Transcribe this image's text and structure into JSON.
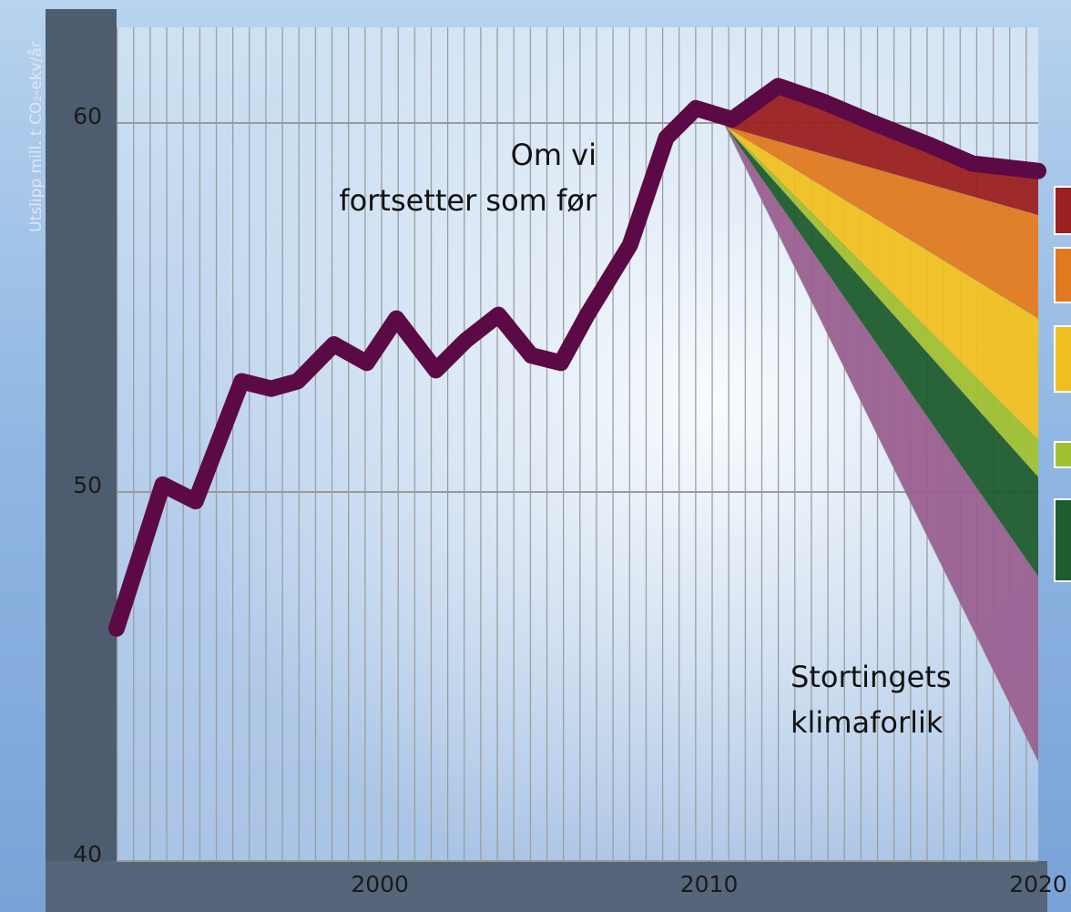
{
  "chart_data": {
    "type": "line",
    "y_label": "Utslipp mill. t CO₂-ekv/år",
    "xlim": [
      1992,
      2020
    ],
    "xticks": [
      2000,
      2010,
      2020
    ],
    "ylim": [
      40,
      60
    ],
    "yticks": [
      40,
      50,
      60
    ],
    "grid": true,
    "series": [
      {
        "color": "#5c0a45",
        "x": [
          1992,
          1993.4,
          1994.4,
          1995.8,
          1996.7,
          1997.5,
          1998.6,
          1999.6,
          2000.5,
          2001.7,
          2002.6,
          2003.6,
          2004.6,
          2005.5,
          2006.3,
          2007.6,
          2008.7,
          2009.6,
          2010.7,
          2012.1,
          2013.4,
          2015,
          2016.7,
          2018,
          2020
        ],
        "values": [
          46.3,
          50.2,
          49.75,
          53.0,
          52.8,
          53.0,
          54.0,
          53.5,
          54.7,
          53.3,
          54.1,
          54.8,
          53.7,
          53.5,
          54.8,
          56.7,
          59.6,
          60.4,
          60.1,
          61.0,
          60.6,
          60.0,
          59.4,
          58.9,
          58.7
        ]
      }
    ],
    "wedges": {
      "x": [
        2010.5,
        2020
      ],
      "start": 59.9,
      "ends": [
        57.5,
        54.7,
        51.4,
        50.4,
        47.7,
        42.7
      ],
      "colors": [
        "#9b2020",
        "#e07a20",
        "#f0c020",
        "#a0c030",
        "#1f5c2e",
        "#9a6090"
      ]
    },
    "annotations": [
      {
        "lines": [
          "Om vi",
          "fortsetter som før"
        ]
      },
      {
        "lines": [
          "Stortingets",
          "klimaforlik"
        ]
      }
    ]
  }
}
